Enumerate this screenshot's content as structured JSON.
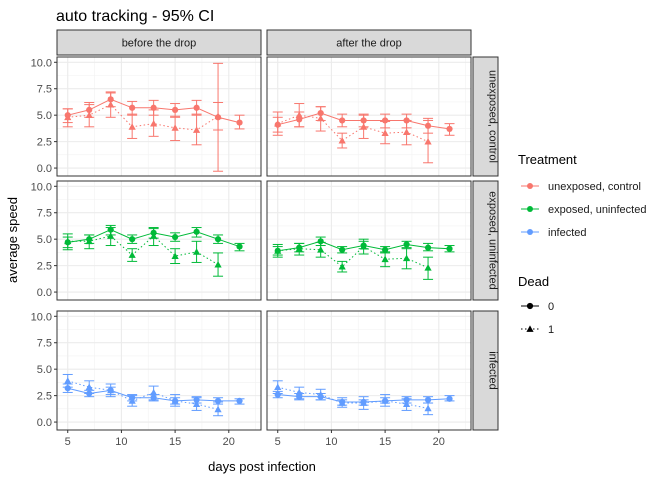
{
  "chart_data": {
    "type": "line",
    "title": "auto tracking - 95% CI",
    "xlabel": "days post infection",
    "ylabel": "average speed",
    "xlim": [
      4,
      23
    ],
    "ylim": [
      -0.75,
      10.5
    ],
    "x_ticks": [
      5,
      10,
      15,
      20
    ],
    "y_ticks": [
      0.0,
      2.5,
      5.0,
      7.5,
      10.0
    ],
    "y_tick_labels": [
      "0.0",
      "2.5",
      "5.0",
      "7.5",
      "10.0"
    ],
    "grid": true,
    "columns": [
      "before the drop",
      "after the drop"
    ],
    "rows": [
      "unexposed, control",
      "exposed, uninfected",
      "infected"
    ],
    "legend": {
      "position": "right",
      "color_title": "Treatment",
      "treatments": [
        {
          "label": "unexposed, control",
          "color": "#F8766D"
        },
        {
          "label": "exposed, uninfected",
          "color": "#00BA38"
        },
        {
          "label": "infected",
          "color": "#619CFF"
        }
      ],
      "shape_title": "Dead",
      "shapes": [
        {
          "label": "0",
          "shape": "circle",
          "linetype": "solid"
        },
        {
          "label": "1",
          "shape": "triangle",
          "linetype": "dotted"
        }
      ]
    },
    "panels": [
      {
        "row": 0,
        "col": 0,
        "series": [
          {
            "dead": "0",
            "points": [
              [
                5,
                5.0,
                4.3,
                5.6
              ],
              [
                7,
                5.5,
                4.8,
                6.2
              ],
              [
                9,
                6.5,
                5.8,
                7.1
              ],
              [
                11,
                5.7,
                5.0,
                6.3
              ],
              [
                13,
                5.7,
                5.0,
                6.4
              ],
              [
                15,
                5.5,
                4.8,
                6.1
              ],
              [
                17,
                5.7,
                5.0,
                6.4
              ],
              [
                19,
                4.8,
                -0.3,
                9.9
              ],
              [
                21,
                4.3,
                3.7,
                5.0
              ]
            ]
          },
          {
            "dead": "1",
            "points": [
              [
                5,
                4.8,
                3.9,
                5.6
              ],
              [
                7,
                5.0,
                3.9,
                6.0
              ],
              [
                9,
                6.0,
                4.8,
                7.2
              ],
              [
                11,
                3.9,
                2.8,
                5.1
              ],
              [
                13,
                4.2,
                3.0,
                5.5
              ],
              [
                15,
                3.8,
                2.6,
                4.9
              ],
              [
                17,
                3.6,
                2.2,
                5.1
              ],
              [
                19,
                4.9,
                3.6,
                6.2
              ]
            ]
          }
        ]
      },
      {
        "row": 0,
        "col": 1,
        "series": [
          {
            "dead": "0",
            "points": [
              [
                5,
                4.1,
                3.4,
                4.8
              ],
              [
                7,
                4.6,
                3.9,
                5.3
              ],
              [
                9,
                5.2,
                4.5,
                5.8
              ],
              [
                11,
                4.5,
                3.9,
                5.1
              ],
              [
                13,
                4.5,
                3.9,
                5.1
              ],
              [
                15,
                4.5,
                3.8,
                5.1
              ],
              [
                17,
                4.5,
                3.8,
                5.1
              ],
              [
                19,
                4.0,
                3.3,
                4.7
              ],
              [
                21,
                3.7,
                3.1,
                4.2
              ]
            ]
          },
          {
            "dead": "1",
            "points": [
              [
                5,
                4.2,
                3.1,
                5.3
              ],
              [
                7,
                5.0,
                3.9,
                6.1
              ],
              [
                9,
                4.7,
                3.5,
                5.8
              ],
              [
                11,
                2.6,
                1.9,
                3.3
              ],
              [
                13,
                3.9,
                2.8,
                5.0
              ],
              [
                15,
                3.3,
                2.3,
                4.4
              ],
              [
                17,
                3.4,
                2.2,
                4.5
              ],
              [
                19,
                2.5,
                0.5,
                4.5
              ]
            ]
          }
        ]
      },
      {
        "row": 1,
        "col": 0,
        "series": [
          {
            "dead": "0",
            "points": [
              [
                5,
                4.7,
                4.2,
                5.2
              ],
              [
                7,
                5.0,
                4.6,
                5.4
              ],
              [
                9,
                5.9,
                5.4,
                6.3
              ],
              [
                11,
                5.0,
                4.6,
                5.4
              ],
              [
                13,
                5.6,
                5.1,
                6.0
              ],
              [
                15,
                5.2,
                4.8,
                5.6
              ],
              [
                17,
                5.7,
                5.2,
                6.1
              ],
              [
                19,
                5.0,
                4.6,
                5.4
              ],
              [
                21,
                4.3,
                3.9,
                4.6
              ]
            ]
          },
          {
            "dead": "1",
            "points": [
              [
                5,
                4.8,
                4.0,
                5.5
              ],
              [
                7,
                4.8,
                4.1,
                5.4
              ],
              [
                9,
                5.3,
                4.4,
                6.1
              ],
              [
                11,
                3.5,
                2.9,
                4.1
              ],
              [
                13,
                5.3,
                4.4,
                6.1
              ],
              [
                15,
                3.4,
                2.7,
                4.1
              ],
              [
                17,
                3.8,
                2.8,
                4.8
              ],
              [
                19,
                2.6,
                1.5,
                3.7
              ]
            ]
          }
        ]
      },
      {
        "row": 1,
        "col": 1,
        "series": [
          {
            "dead": "0",
            "points": [
              [
                5,
                3.9,
                3.5,
                4.3
              ],
              [
                7,
                4.2,
                3.8,
                4.6
              ],
              [
                9,
                4.8,
                4.4,
                5.2
              ],
              [
                11,
                4.0,
                3.7,
                4.3
              ],
              [
                13,
                4.4,
                4.1,
                4.8
              ],
              [
                15,
                4.0,
                3.7,
                4.3
              ],
              [
                17,
                4.5,
                4.1,
                4.8
              ],
              [
                19,
                4.2,
                3.9,
                4.6
              ],
              [
                21,
                4.1,
                3.8,
                4.4
              ]
            ]
          },
          {
            "dead": "1",
            "points": [
              [
                5,
                3.9,
                3.3,
                4.5
              ],
              [
                7,
                4.1,
                3.5,
                4.6
              ],
              [
                9,
                4.0,
                3.3,
                4.7
              ],
              [
                11,
                2.4,
                1.9,
                2.9
              ],
              [
                13,
                4.3,
                3.6,
                5.0
              ],
              [
                15,
                3.1,
                2.4,
                3.8
              ],
              [
                17,
                3.2,
                2.2,
                4.2
              ],
              [
                19,
                2.3,
                1.2,
                3.3
              ]
            ]
          }
        ]
      },
      {
        "row": 2,
        "col": 0,
        "series": [
          {
            "dead": "0",
            "points": [
              [
                5,
                3.2,
                2.8,
                3.6
              ],
              [
                7,
                2.7,
                2.4,
                3.0
              ],
              [
                9,
                3.0,
                2.6,
                3.3
              ],
              [
                11,
                2.3,
                2.0,
                2.6
              ],
              [
                13,
                2.3,
                2.0,
                2.6
              ],
              [
                15,
                2.0,
                1.7,
                2.3
              ],
              [
                17,
                2.1,
                1.8,
                2.4
              ],
              [
                19,
                2.0,
                1.7,
                2.3
              ],
              [
                21,
                2.0,
                1.7,
                2.2
              ]
            ]
          },
          {
            "dead": "1",
            "points": [
              [
                5,
                3.9,
                3.3,
                4.5
              ],
              [
                7,
                3.3,
                2.7,
                3.9
              ],
              [
                9,
                3.0,
                2.4,
                3.6
              ],
              [
                11,
                2.0,
                1.5,
                2.5
              ],
              [
                13,
                2.8,
                2.1,
                3.4
              ],
              [
                15,
                2.0,
                1.5,
                2.6
              ],
              [
                17,
                1.7,
                1.1,
                2.3
              ],
              [
                19,
                1.2,
                0.6,
                1.9
              ]
            ]
          }
        ]
      },
      {
        "row": 2,
        "col": 1,
        "series": [
          {
            "dead": "0",
            "points": [
              [
                5,
                2.6,
                2.3,
                2.9
              ],
              [
                7,
                2.4,
                2.1,
                2.7
              ],
              [
                9,
                2.4,
                2.1,
                2.7
              ],
              [
                11,
                1.9,
                1.6,
                2.1
              ],
              [
                13,
                1.9,
                1.6,
                2.1
              ],
              [
                15,
                2.0,
                1.8,
                2.3
              ],
              [
                17,
                2.1,
                1.8,
                2.4
              ],
              [
                19,
                2.1,
                1.8,
                2.4
              ],
              [
                21,
                2.2,
                2.0,
                2.5
              ]
            ]
          },
          {
            "dead": "1",
            "points": [
              [
                5,
                3.3,
                2.7,
                3.9
              ],
              [
                7,
                2.8,
                2.2,
                3.3
              ],
              [
                9,
                2.6,
                2.1,
                3.1
              ],
              [
                11,
                1.8,
                1.4,
                2.3
              ],
              [
                13,
                1.8,
                1.2,
                2.4
              ],
              [
                15,
                2.0,
                1.5,
                2.6
              ],
              [
                17,
                1.7,
                1.1,
                2.2
              ],
              [
                19,
                1.3,
                0.7,
                1.8
              ]
            ]
          }
        ]
      }
    ]
  }
}
